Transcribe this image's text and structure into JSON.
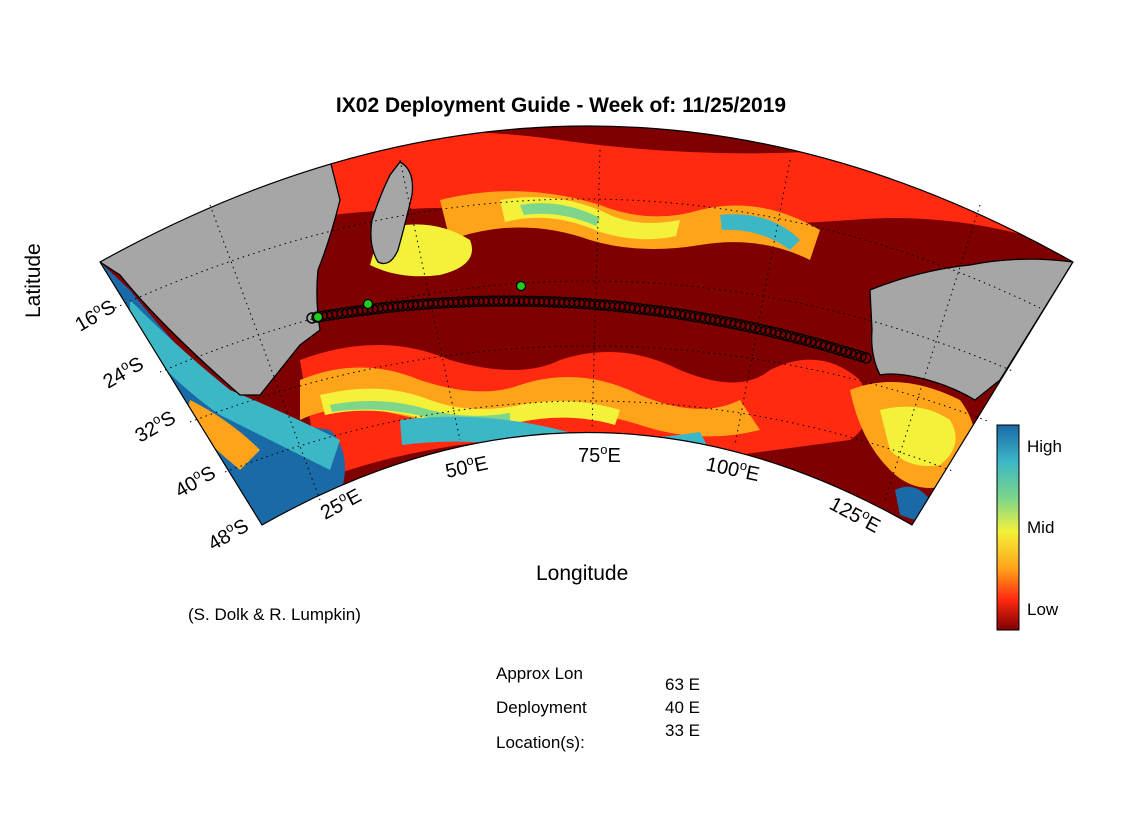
{
  "title": "IX02 Deployment Guide - Week of: 11/25/2019",
  "axes": {
    "ylabel": "Latitude",
    "xlabel": "Longitude",
    "lat_ticks": [
      {
        "deg": "16",
        "hemi": "S"
      },
      {
        "deg": "24",
        "hemi": "S"
      },
      {
        "deg": "32",
        "hemi": "S"
      },
      {
        "deg": "40",
        "hemi": "S"
      },
      {
        "deg": "48",
        "hemi": "S"
      }
    ],
    "lon_ticks": [
      {
        "deg": "25",
        "hemi": "E"
      },
      {
        "deg": "50",
        "hemi": "E"
      },
      {
        "deg": "75",
        "hemi": "E"
      },
      {
        "deg": "100",
        "hemi": "E"
      },
      {
        "deg": "125",
        "hemi": "E"
      }
    ]
  },
  "colorbar": {
    "ticks": [
      "High",
      "Mid",
      "Low"
    ],
    "colors": [
      "#1a6aa8",
      "#3cb7c6",
      "#7dd68a",
      "#f4f13a",
      "#ffa41a",
      "#ff2a10",
      "#7e0000"
    ]
  },
  "credit": "(S. Dolk & R. Lumpkin)",
  "deployment": {
    "label_lines": [
      "Approx Lon",
      "Deployment",
      "Location(s):"
    ],
    "values": [
      "63 E",
      "40 E",
      "33 E"
    ],
    "marker_color": "#1ed01e",
    "track_color": "#000000"
  },
  "map_colors": {
    "land": "#a6a6a6",
    "ocean_low": "#7e0000"
  }
}
